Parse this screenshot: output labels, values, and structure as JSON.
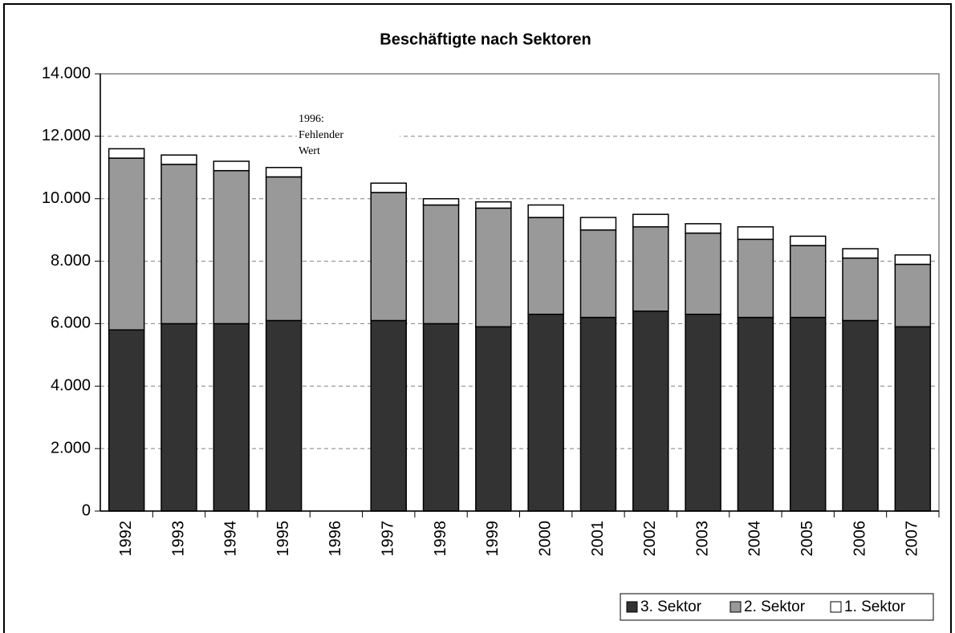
{
  "chart_data": {
    "type": "stacked_bar",
    "title": "Beschäftigte nach Sektoren",
    "categories": [
      "1992",
      "1993",
      "1994",
      "1995",
      "1996",
      "1997",
      "1998",
      "1999",
      "2000",
      "2001",
      "2002",
      "2003",
      "2004",
      "2005",
      "2006",
      "2007"
    ],
    "series": [
      {
        "name": "3. Sektor",
        "color": "#333333",
        "values": [
          5800,
          6000,
          6000,
          6100,
          null,
          6100,
          6000,
          5900,
          6300,
          6200,
          6400,
          6300,
          6200,
          6200,
          6100,
          5900
        ]
      },
      {
        "name": "2. Sektor",
        "color": "#999999",
        "values": [
          5500,
          5100,
          4900,
          4600,
          null,
          4100,
          3800,
          3800,
          3100,
          2800,
          2700,
          2600,
          2500,
          2300,
          2000,
          2000
        ]
      },
      {
        "name": "1. Sektor",
        "color": "#ffffff",
        "values": [
          300,
          300,
          300,
          300,
          null,
          300,
          200,
          200,
          400,
          400,
          400,
          300,
          400,
          300,
          300,
          300
        ]
      }
    ],
    "annotation": [
      "1996:",
      "Fehlender",
      "Wert"
    ],
    "ylim": [
      0,
      14000
    ],
    "yticks": [
      0,
      {
        "value": 2000,
        "label": "2.000"
      },
      {
        "value": 4000,
        "label": "4.000"
      },
      {
        "value": 6000,
        "label": "6.000"
      },
      {
        "value": 8000,
        "label": "8.000"
      },
      {
        "value": 10000,
        "label": "10.000"
      },
      {
        "value": 12000,
        "label": "12.000"
      },
      {
        "value": 14000,
        "label": "14.000"
      }
    ],
    "grid": true,
    "legend": "bottom-right"
  }
}
